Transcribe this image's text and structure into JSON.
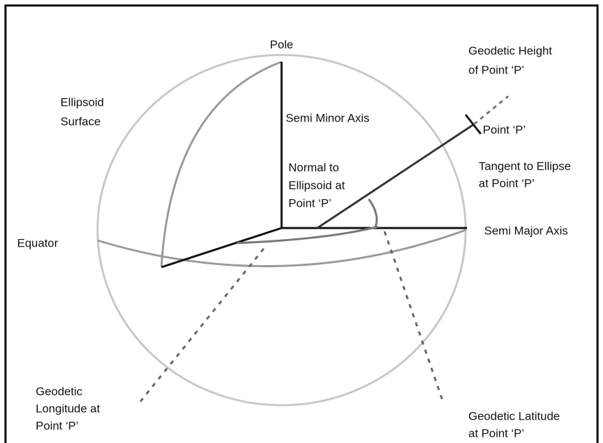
{
  "labels": [
    {
      "name": "pole",
      "lines": [
        "Pole"
      ]
    },
    {
      "name": "geodetic-height",
      "lines": [
        "Geodetic Height",
        "of Point ‘P’"
      ]
    },
    {
      "name": "ellipsoid-surface",
      "lines": [
        "Ellipsoid",
        "Surface"
      ]
    },
    {
      "name": "semi-minor-axis",
      "lines": [
        "Semi Minor Axis"
      ]
    },
    {
      "name": "point-p",
      "lines": [
        "Point ‘P’"
      ]
    },
    {
      "name": "tangent",
      "lines": [
        "Tangent to Ellipse",
        "at Point ‘P’"
      ]
    },
    {
      "name": "normal",
      "lines": [
        "Normal to",
        "Ellipsoid at",
        "Point ‘P’"
      ]
    },
    {
      "name": "semi-major-axis",
      "lines": [
        "Semi Major Axis"
      ]
    },
    {
      "name": "equator",
      "lines": [
        "Equator"
      ]
    },
    {
      "name": "geodetic-longitude",
      "lines": [
        "Geodetic",
        "Longitude at",
        "Point ‘P’"
      ]
    },
    {
      "name": "geodetic-latitude",
      "lines": [
        "Geodetic Latitude",
        "at Point ‘P’"
      ]
    }
  ]
}
